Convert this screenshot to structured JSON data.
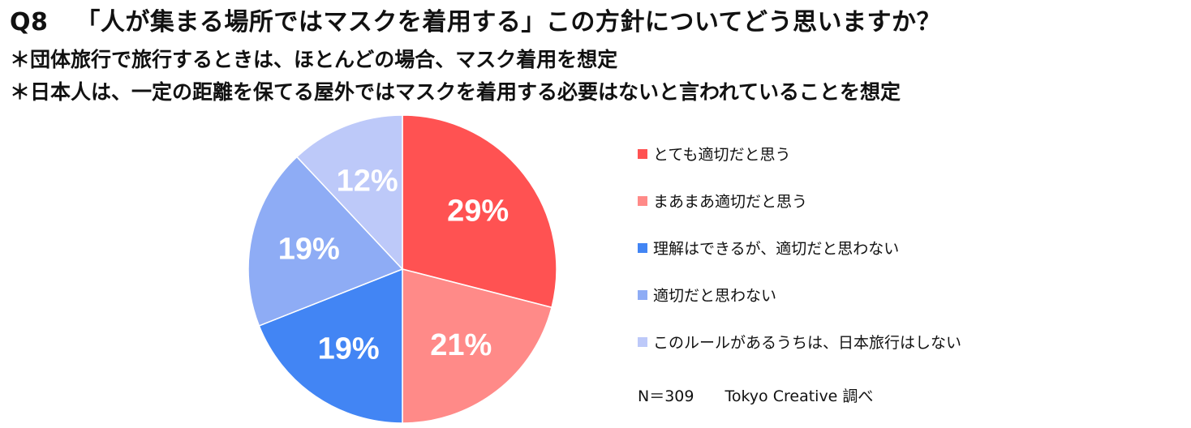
{
  "title": {
    "qnum": "Q8",
    "text": "「人が集まる場所ではマスクを着用する」この方針についてどう思いますか？"
  },
  "notes": [
    "＊団体旅行で旅行するときは、ほとんどの場合、マスク着用を想定",
    "＊日本人は、一定の距離を保てる屋外ではマスクを着用する必要はないと言われていることを想定"
  ],
  "chart_data": {
    "type": "pie",
    "start": "12 o'clock",
    "direction": "clockwise",
    "legend_position": "right",
    "slices": [
      {
        "label": "とても適切だと思う",
        "value": 29,
        "display": "29%",
        "color": "#ff5252"
      },
      {
        "label": "まあまあ適切だと思う",
        "value": 21,
        "display": "21%",
        "color": "#ff8a88"
      },
      {
        "label": "理解はできるが、適切だと思わない",
        "value": 19,
        "display": "19%",
        "color": "#4285f4"
      },
      {
        "label": "適切だと思わない",
        "value": 19,
        "display": "19%",
        "color": "#8eacf5"
      },
      {
        "label": "このルールがあるうちは、日本旅行はしない",
        "value": 12,
        "display": "12%",
        "color": "#bdc9f9"
      }
    ]
  },
  "footer": {
    "n": "N＝309",
    "credit": "Tokyo Creative  調べ"
  }
}
